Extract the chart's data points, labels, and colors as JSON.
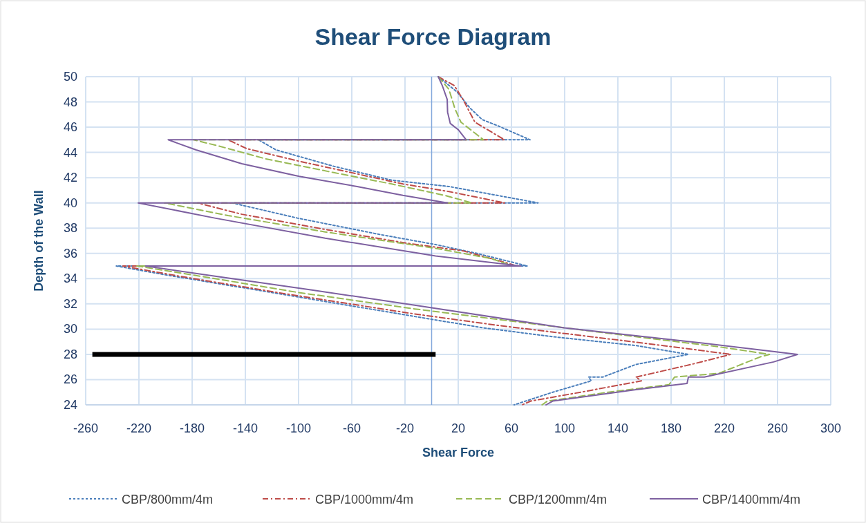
{
  "chart_data": {
    "type": "line",
    "title": "Shear Force Diagram",
    "xlabel": "Shear Force",
    "ylabel": "Depth of the Wall",
    "xlim": [
      -260,
      300
    ],
    "xticks": [
      -260,
      -220,
      -180,
      -140,
      -100,
      -60,
      -20,
      20,
      60,
      100,
      140,
      180,
      220,
      260,
      300
    ],
    "ylim": [
      24,
      50
    ],
    "yticks": [
      24,
      26,
      28,
      30,
      32,
      34,
      36,
      38,
      40,
      42,
      44,
      46,
      48,
      50
    ],
    "grid": true,
    "legend": "bottom",
    "ref_lines": [
      {
        "axis": "x",
        "value": 0,
        "color": "#84a9dc"
      }
    ],
    "series": [
      {
        "name": "CBP/800mm/4m",
        "color": "#4a7ebb",
        "line_style": "dotted",
        "x": [
          5,
          19,
          29,
          38,
          50,
          74,
          -130,
          -117,
          -73.5,
          -30,
          13,
          80,
          -150,
          -101,
          -39,
          3,
          34,
          72,
          -237,
          -200,
          -120,
          -12.7,
          39,
          91,
          153.5,
          193,
          153.5,
          128.6,
          118,
          120,
          91,
          62
        ],
        "values": [
          50,
          48.8,
          47.5,
          46.6,
          46.1,
          45,
          45,
          44.2,
          42.9,
          41.8,
          41.3,
          40,
          40,
          38.8,
          37.5,
          36.7,
          36,
          35,
          35,
          34.3,
          32.9,
          31,
          30.1,
          29.4,
          28.7,
          28,
          27.2,
          26.2,
          26.2,
          25.9,
          25,
          24
        ]
      },
      {
        "name": "CBP/1000mm/4m",
        "color": "#be4b48",
        "line_style": "dashdot",
        "x": [
          5,
          17,
          23.6,
          32.5,
          54.8,
          -153,
          -139,
          -99.5,
          -56,
          -21.6,
          13,
          54.8,
          -176,
          -142.6,
          -80,
          -18,
          23.6,
          54.8,
          64,
          -232,
          -190,
          -110,
          -12.7,
          49.6,
          112,
          174,
          225,
          195,
          157.7,
          153.5,
          157.7,
          112,
          74.5,
          68
        ],
        "values": [
          50,
          49.3,
          48.2,
          46.4,
          45,
          45,
          44.3,
          43.3,
          42.3,
          41.5,
          40.9,
          40,
          40,
          39.1,
          37.9,
          36.8,
          36.2,
          35.3,
          35,
          35,
          34.2,
          32.8,
          31.2,
          30.3,
          29.5,
          28.7,
          28,
          27.2,
          26.3,
          26.2,
          25.9,
          25,
          24.3,
          24
        ]
      },
      {
        "name": "CBP/1200mm/4m",
        "color": "#98b954",
        "line_style": "dashed",
        "x": [
          5,
          13,
          17.4,
          22,
          39,
          -179,
          -159.7,
          -125,
          -73.5,
          -30,
          9.6,
          30.4,
          -200.8,
          -153,
          -80,
          3,
          44.4,
          61,
          -221.5,
          -180,
          -100,
          -12.7,
          70,
          153.5,
          216,
          254,
          247,
          216,
          182.6,
          178.4,
          132.7,
          87,
          83
        ],
        "values": [
          50,
          49,
          47.5,
          46.4,
          45,
          45,
          44.5,
          43.5,
          42.4,
          41.5,
          40.6,
          40,
          40,
          39,
          37.7,
          36.4,
          35.6,
          35,
          35,
          34.3,
          32.9,
          31.6,
          30.5,
          29.4,
          28.6,
          28,
          27.8,
          26.5,
          26.2,
          25.6,
          25,
          24.3,
          24
        ]
      },
      {
        "name": "CBP/1400mm/4m",
        "color": "#7d60a0",
        "line_style": "solid",
        "x": [
          5,
          8,
          11.7,
          12,
          14,
          20,
          26,
          -198,
          -177,
          -142.6,
          -99.5,
          -56,
          -21.6,
          12,
          -220.5,
          -163,
          -80,
          3,
          67,
          -215,
          -170,
          -90,
          -12.7,
          99.5,
          195,
          275,
          257,
          205,
          193,
          192,
          153.5,
          91,
          86
        ],
        "values": [
          50,
          49.3,
          48.2,
          47.2,
          46.3,
          45.8,
          45,
          45,
          44.2,
          43.1,
          42.1,
          41.3,
          40.6,
          40,
          40,
          38.8,
          37.2,
          35.8,
          35,
          35,
          34.3,
          33.1,
          31.9,
          30.1,
          29,
          28,
          27.4,
          26.2,
          26.2,
          25.7,
          25.2,
          24.3,
          24
        ]
      },
      {
        "color": "#000000",
        "line_style": "solid",
        "x": [
          -255,
          3
        ],
        "values": [
          28,
          28
        ]
      }
    ]
  }
}
